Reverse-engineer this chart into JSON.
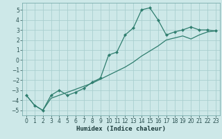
{
  "xlabel": "Humidex (Indice chaleur)",
  "x": [
    0,
    1,
    2,
    3,
    4,
    5,
    6,
    7,
    8,
    9,
    10,
    11,
    12,
    13,
    14,
    15,
    16,
    17,
    18,
    19,
    20,
    21,
    22,
    23
  ],
  "y_curve": [
    -3.5,
    -4.5,
    -5.0,
    -3.5,
    -3.0,
    -3.5,
    -3.2,
    -2.8,
    -2.2,
    -1.8,
    0.5,
    0.8,
    2.5,
    3.2,
    5.0,
    5.2,
    4.0,
    2.5,
    2.8,
    3.0,
    3.3,
    3.0,
    3.0,
    2.9
  ],
  "y_line": [
    -3.5,
    -4.5,
    -5.0,
    -3.8,
    -3.5,
    -3.2,
    -2.9,
    -2.6,
    -2.3,
    -1.9,
    -1.5,
    -1.1,
    -0.7,
    -0.2,
    0.4,
    0.9,
    1.4,
    2.0,
    2.2,
    2.4,
    2.1,
    2.5,
    2.8,
    2.9
  ],
  "line_color": "#2e7d6e",
  "bg_color": "#cde8e8",
  "grid_color": "#aacfcf",
  "ylim": [
    -5.5,
    5.7
  ],
  "xlim": [
    -0.5,
    23.5
  ],
  "yticks": [
    -5,
    -4,
    -3,
    -2,
    -1,
    0,
    1,
    2,
    3,
    4,
    5
  ],
  "xticks": [
    0,
    1,
    2,
    3,
    4,
    5,
    6,
    7,
    8,
    9,
    10,
    11,
    12,
    13,
    14,
    15,
    16,
    17,
    18,
    19,
    20,
    21,
    22,
    23
  ],
  "tick_fontsize": 5.5,
  "xlabel_fontsize": 6.5
}
